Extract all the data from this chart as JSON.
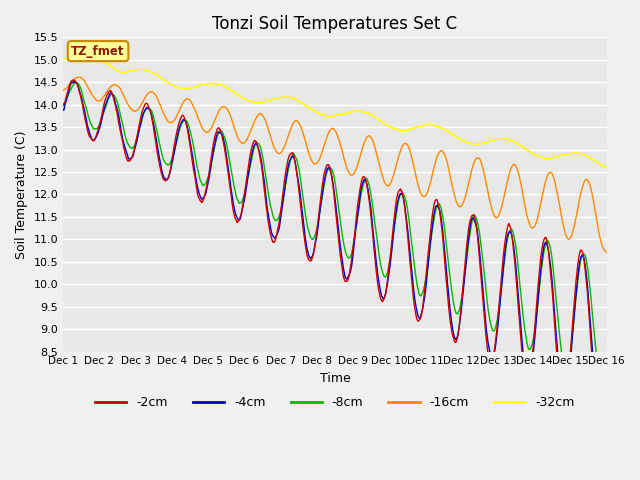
{
  "title": "Tonzi Soil Temperatures Set C",
  "xlabel": "Time",
  "ylabel": "Soil Temperature (C)",
  "ylim": [
    8.5,
    15.5
  ],
  "colors": {
    "-2cm": "#cc0000",
    "-4cm": "#0000cc",
    "-8cm": "#00bb00",
    "-16cm": "#ff8800",
    "-32cm": "#ffff00"
  },
  "legend_label": "TZ_fmet",
  "legend_bg": "#ffff99",
  "legend_border": "#cc8800",
  "x_tick_labels": [
    "Dec 1",
    "Dec 2",
    "Dec 3",
    "Dec 4",
    "Dec 5",
    "Dec 6",
    "Dec 7",
    "Dec 8",
    "Dec 9",
    "Dec 10",
    "Dec 11",
    "Dec 12",
    "Dec 13",
    "Dec 14",
    "Dec 15",
    "Dec 16"
  ],
  "background_color": "#e8e8e8",
  "title_fontsize": 12
}
